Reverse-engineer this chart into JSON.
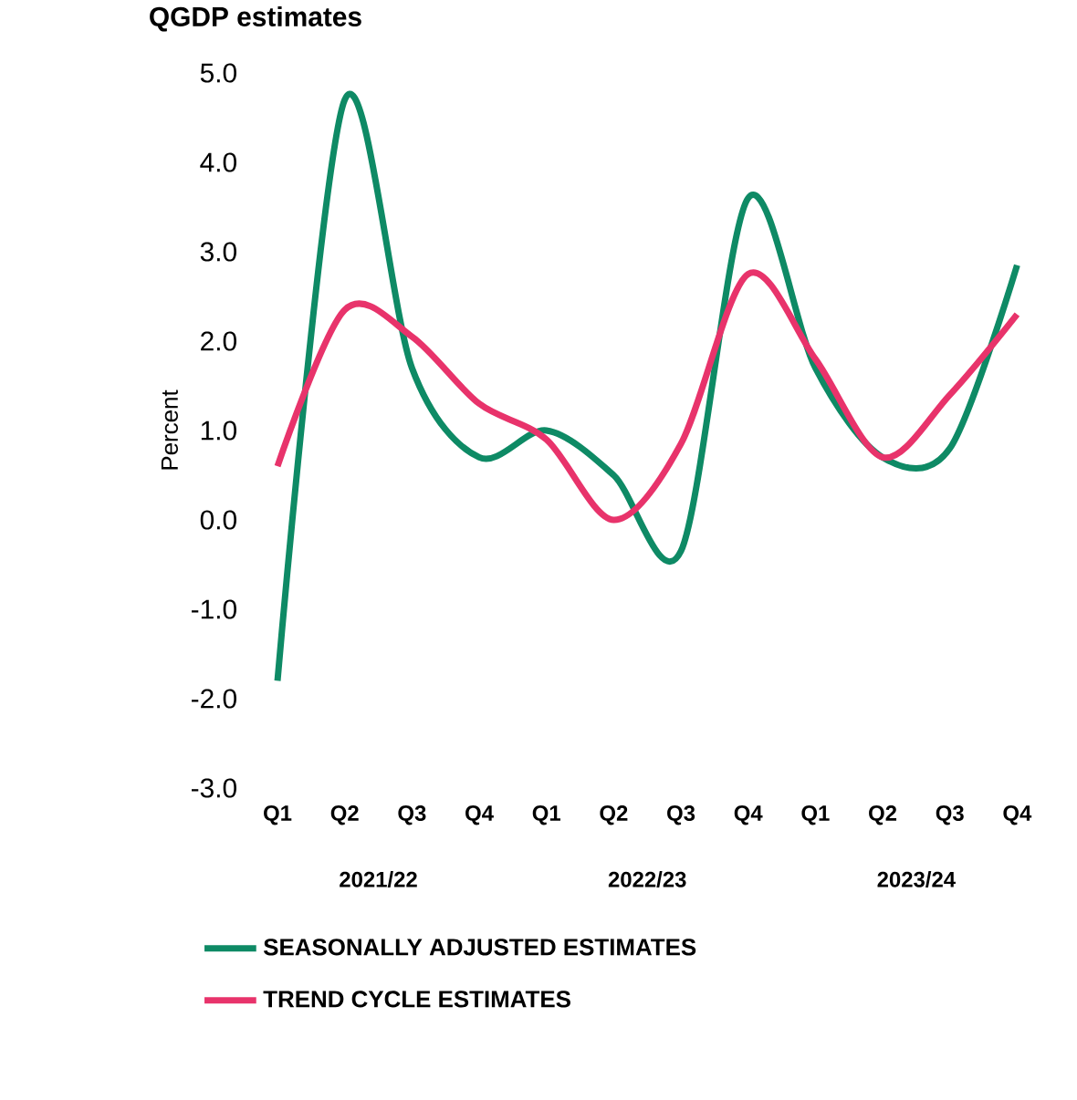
{
  "chart_data": {
    "type": "line",
    "title": "QGDP estimates",
    "ylabel": "Percent",
    "categories": [
      "Q1",
      "Q2",
      "Q3",
      "Q4",
      "Q1",
      "Q2",
      "Q3",
      "Q4",
      "Q1",
      "Q2",
      "Q3",
      "Q4"
    ],
    "series": [
      {
        "name": "SEASONALLY ADJUSTED ESTIMATES",
        "color": "#0e8a65",
        "values": [
          -1.8,
          4.7,
          1.7,
          0.7,
          1.0,
          0.5,
          -0.35,
          3.6,
          1.7,
          0.7,
          0.8,
          2.85
        ]
      },
      {
        "name": "TREND CYCLE ESTIMATES",
        "color": "#e8336b",
        "values": [
          0.6,
          2.35,
          2.05,
          1.3,
          0.9,
          0.0,
          0.85,
          2.75,
          1.8,
          0.7,
          1.4,
          2.3
        ]
      }
    ],
    "ylim": [
      -3,
      5
    ],
    "yticks": [
      {
        "value": -3,
        "label": "-3.0"
      },
      {
        "value": -2,
        "label": "-2.0"
      },
      {
        "value": -1,
        "label": "-1.0"
      },
      {
        "value": 0,
        "label": "0.0"
      },
      {
        "value": 1,
        "label": "1.0"
      },
      {
        "value": 2,
        "label": "2.0"
      },
      {
        "value": 3,
        "label": "3.0"
      },
      {
        "value": 4,
        "label": "4.0"
      },
      {
        "value": 5,
        "label": "5.0"
      }
    ],
    "annotations": [
      "2021/22",
      "2022/23",
      "2023/24"
    ],
    "legend": "bottom",
    "marker": "none",
    "line_style": "solid"
  }
}
